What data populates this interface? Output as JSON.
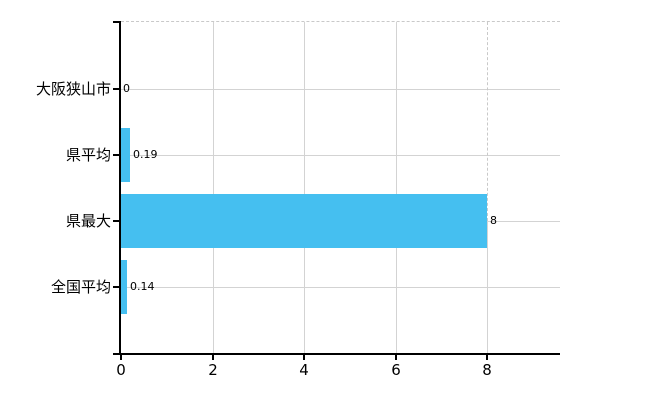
{
  "chart_data": {
    "type": "bar",
    "orientation": "horizontal",
    "title": "",
    "xlabel": "",
    "ylabel": "",
    "categories": [
      "大阪狭山市",
      "県平均",
      "県最大",
      "全国平均"
    ],
    "values": [
      0,
      0.19,
      8,
      0.14
    ],
    "value_labels": [
      "0",
      "0.19",
      "8",
      "0.14"
    ],
    "x_ticks": [
      0,
      2,
      4,
      6,
      8
    ],
    "x_tick_labels": [
      "0",
      "2",
      "4",
      "6",
      "8"
    ],
    "xlim": [
      0,
      9.6
    ],
    "grid": true,
    "legend_position": "none",
    "colors": {
      "bar": "#45BFF0",
      "grid_solid": "#D3D3D3",
      "grid_dashed": "#C9C9C9",
      "axis": "#000000",
      "text": "#000000",
      "background": "#FFFFFF"
    }
  }
}
